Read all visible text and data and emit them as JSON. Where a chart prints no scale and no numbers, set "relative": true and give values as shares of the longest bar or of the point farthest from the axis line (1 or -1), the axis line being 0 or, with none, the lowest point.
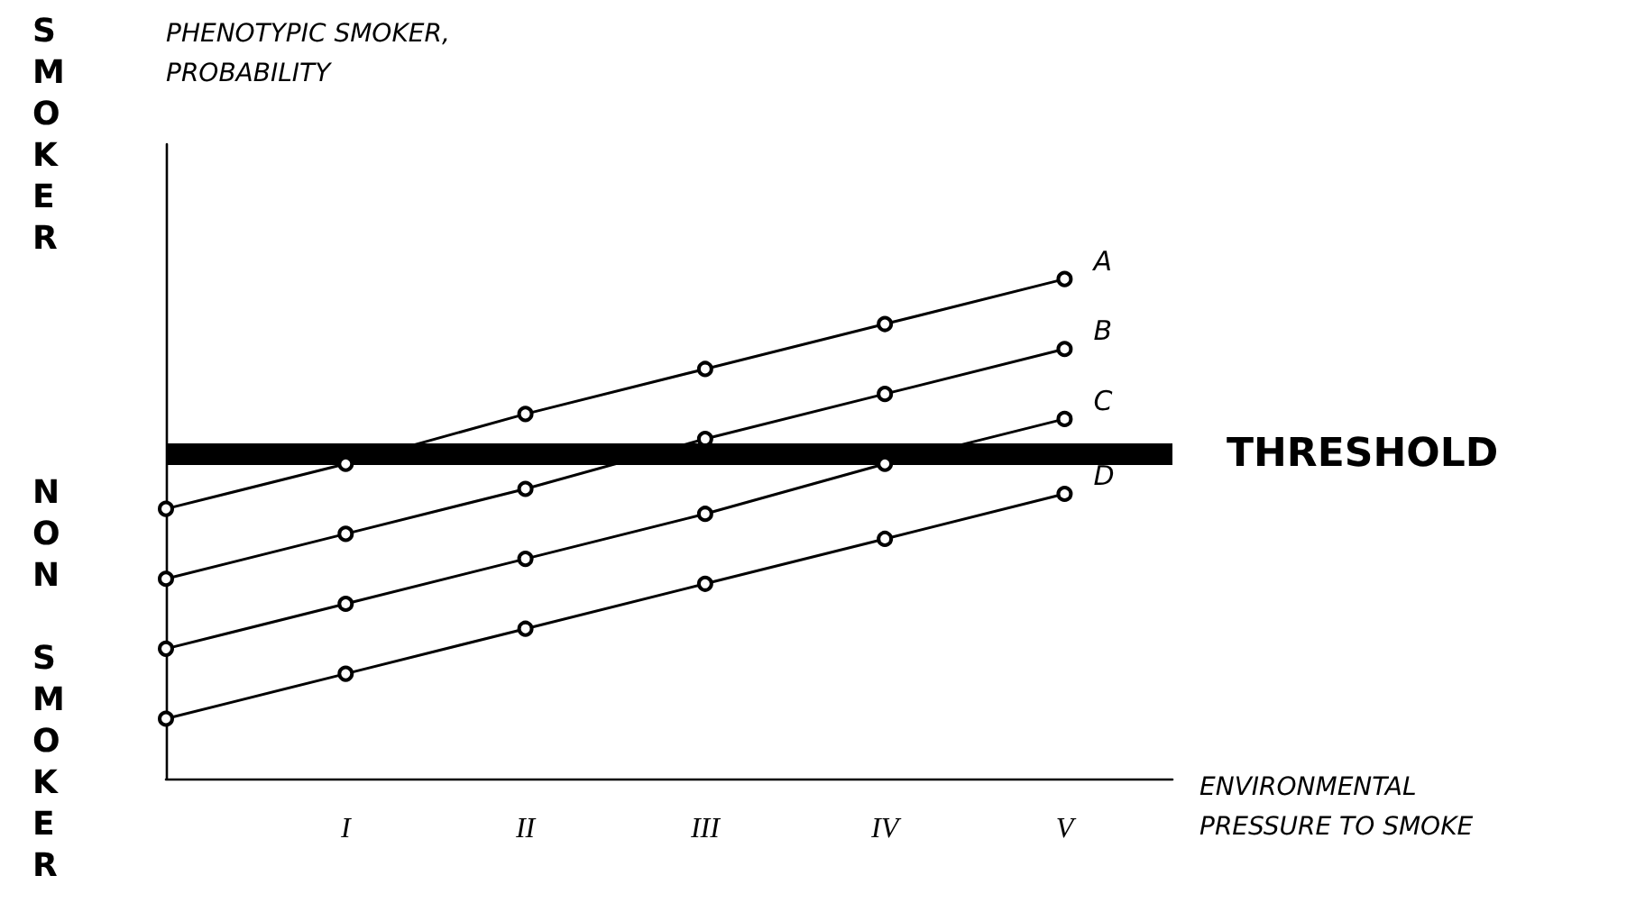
{
  "chart_data": {
    "type": "line",
    "relative": true,
    "marker": "circle",
    "line_style": "solid",
    "grid": false,
    "legend": false,
    "xlabel": "ENVIRONMENTAL PRESSURE TO SMOKE",
    "annotations": [
      "SMOKER",
      "NON SMOKER",
      "PHENOTYPIC SMOKER, PROBABILITY"
    ],
    "categories": [
      null,
      "I",
      "II",
      "III",
      "IV",
      "V"
    ],
    "series": [
      {
        "name": "A",
        "color": "#000000",
        "values": [
          0.54,
          0.63,
          0.73,
          0.82,
          0.91,
          1
        ]
      },
      {
        "name": "B",
        "color": "#000000",
        "values": [
          0.4,
          0.49,
          0.58,
          0.68,
          0.77,
          0.86
        ]
      },
      {
        "name": "C",
        "color": "#000000",
        "values": [
          0.26,
          0.35,
          0.44,
          0.53,
          0.63,
          0.72
        ]
      },
      {
        "name": "D",
        "color": "#000000",
        "values": [
          0.12,
          0.21,
          0.3,
          0.39,
          0.48,
          0.57
        ]
      }
    ],
    "ref_lines": [
      {
        "axis": "y",
        "value": 0.65,
        "label": "THRESHOLD",
        "color": "#000000"
      }
    ]
  }
}
